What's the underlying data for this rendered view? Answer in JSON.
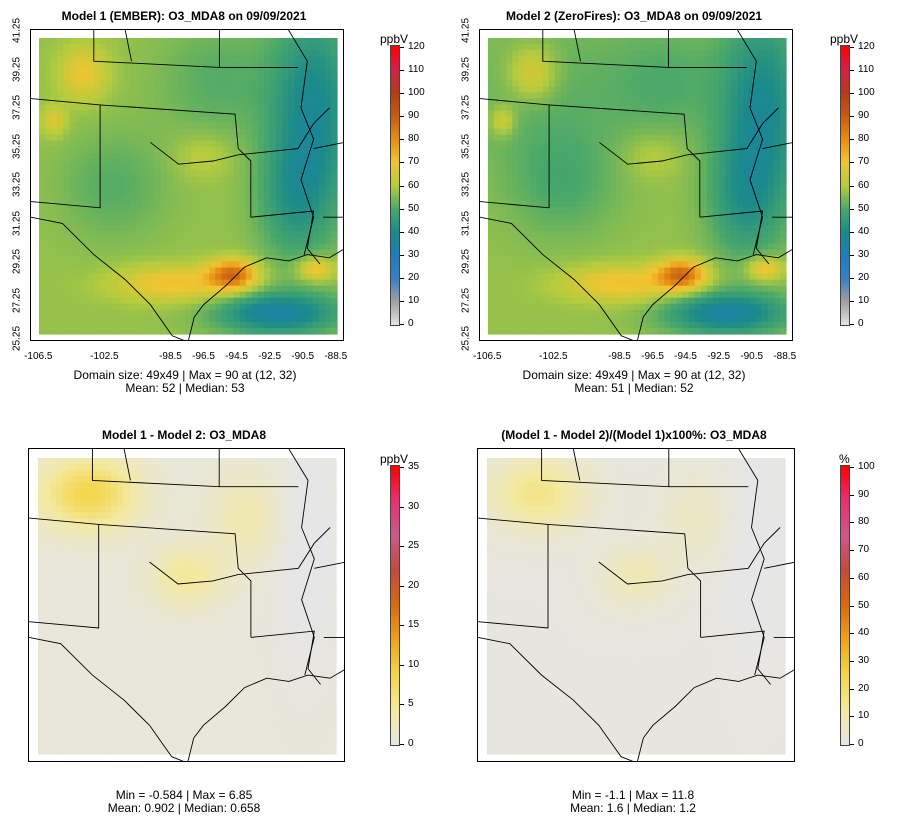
{
  "panels": [
    {
      "id": "p1",
      "title": "Model 1 (EMBER): O3_MDA8 on 09/09/2021",
      "stats_line1": "Domain size: 49x49 | Max = 90 at (12, 32)",
      "stats_line2": "Mean: 52 |  Median: 53",
      "colorbar_unit": "ppbV",
      "colorbar_ticks": [
        "0",
        "10",
        "20",
        "30",
        "40",
        "50",
        "60",
        "70",
        "80",
        "90",
        "100",
        "110",
        "120"
      ],
      "colorbar_scale": "absolute",
      "has_axes": true
    },
    {
      "id": "p2",
      "title": "Model 2 (ZeroFires): O3_MDA8 on 09/09/2021",
      "stats_line1": "Domain size: 49x49 | Max = 90 at (12, 32)",
      "stats_line2": "Mean: 51 |  Median: 52",
      "colorbar_unit": "ppbV",
      "colorbar_ticks": [
        "0",
        "10",
        "20",
        "30",
        "40",
        "50",
        "60",
        "70",
        "80",
        "90",
        "100",
        "110",
        "120"
      ],
      "colorbar_scale": "absolute",
      "has_axes": true
    },
    {
      "id": "p3",
      "title": "Model 1 - Model 2: O3_MDA8",
      "stats_line1": "Min = -0.584 | Max = 6.85",
      "stats_line2": "Mean: 0.902 |  Median: 0.658",
      "colorbar_unit": "ppbV",
      "colorbar_ticks": [
        "0",
        "5",
        "10",
        "15",
        "20",
        "25",
        "30",
        "35"
      ],
      "colorbar_scale": "difference",
      "has_axes": false
    },
    {
      "id": "p4",
      "title": "(Model 1 - Model 2)/(Model 1)x100%: O3_MDA8",
      "stats_line1": "Min = -1.1 | Max = 11.8",
      "stats_line2": "Mean: 1.6 |  Median: 1.2",
      "colorbar_unit": "%",
      "colorbar_ticks": [
        "0",
        "10",
        "20",
        "30",
        "40",
        "50",
        "60",
        "70",
        "80",
        "90",
        "100"
      ],
      "colorbar_scale": "difference",
      "has_axes": false
    }
  ],
  "lat_ticks": [
    "25.25",
    "27.25",
    "29.25",
    "31.25",
    "33.25",
    "35.25",
    "37.25",
    "39.25",
    "41.25"
  ],
  "lon_ticks": [
    "-106.5",
    "-102.5",
    "-98.5",
    "-96.5",
    "-94.5",
    "-92.5",
    "-90.5",
    "-88.5"
  ],
  "colors": {
    "absolute_scale": [
      "#e6e6e6",
      "#a0a0a0",
      "#3a7fc6",
      "#1f7db8",
      "#1b8a8a",
      "#4aa86a",
      "#b5cc3e",
      "#f2c531",
      "#e58c12",
      "#c65a14",
      "#b33a1a",
      "#d4204a",
      "#ff0000"
    ],
    "difference_scale": [
      "#e6e6e6",
      "#f3e9a0",
      "#f4d64a",
      "#eda418",
      "#d86a14",
      "#c34a3a",
      "#c85a8a",
      "#e83070",
      "#ff0000"
    ],
    "state_borders": "#000000"
  }
}
